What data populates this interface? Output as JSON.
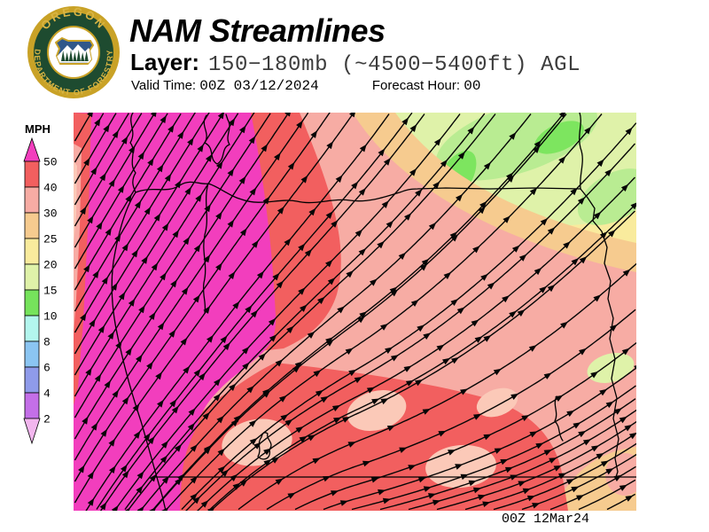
{
  "header": {
    "title": "NAM Streamlines",
    "layer_label": "Layer:",
    "layer_value": "150−180mb (~4500−5400ft) AGL",
    "valid_label": "Valid Time:",
    "valid_value": "00Z 03/12/2024",
    "forecast_label": "Forecast Hour:",
    "forecast_value": "00"
  },
  "logo": {
    "top_text": "OREGON",
    "bottom_text": "DEPARTMENT OF FORESTRY",
    "gold": "#C9A227",
    "dark_green": "#1E4B30",
    "blue": "#30588A"
  },
  "legend": {
    "title": "MPH",
    "labels": [
      "50",
      "40",
      "30",
      "25",
      "20",
      "15",
      "10",
      "8",
      "6",
      "4",
      "2"
    ],
    "segment_colors": [
      "#F25F5F",
      "#F7ACA4",
      "#F6CB8F",
      "#F9EB9D",
      "#DFF2A9",
      "#76E35C",
      "#B3F6EE",
      "#8BC5F2",
      "#8F9BEA",
      "#C46FE8"
    ],
    "above_color": "#F23EBD",
    "below_color": "#F2B6EE"
  },
  "palette": {
    "magenta": "#F23EBD",
    "red": "#F25F5F",
    "salmon": "#F7ACA4",
    "lightsalmon": "#FBC9B8",
    "peach": "#F6CB8F",
    "yellow": "#F9EB9D",
    "palelime": "#DFF2A9",
    "ltgreen": "#B9EC92",
    "green": "#7DE55F"
  },
  "footer": {
    "timestamp": "00Z 12Mar24"
  }
}
